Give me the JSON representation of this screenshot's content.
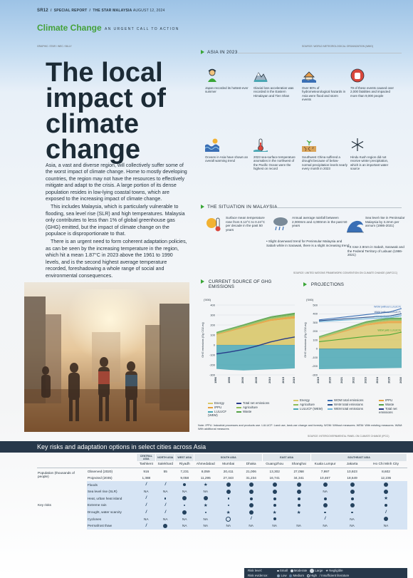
{
  "header": {
    "section": "SR12",
    "report": "SPECIAL REPORT",
    "paper": "THE STAR",
    "country": "MALAYSIA",
    "date": "AUGUST 12, 2024"
  },
  "banner": {
    "title": "Climate Change",
    "subtitle": "AN URGENT CALL TO ACTION"
  },
  "credit": "GRAPHIC: STAR / WEC / BILLY",
  "source_top": "SOURCE: WORLD METEOROLOGICAL ORGANIZATION (WMO)",
  "title": "The local impact of climate change",
  "body": [
    "Asia, a vast and diverse region, will collectively suffer some of the worst impact of climate change. Home to mostly developing countries, the region may not have the resources to effectively mitigate and adapt to the crisis. A large portion of its dense population resides in low-lying coastal towns, which are exposed to the increasing impact of climate change.",
    "This includes Malaysia, which is particularly vulnerable to flooding, sea level rise (SLR) and high temperatures. Malaysia only contributes to less than 1% of global greenhouse gas (GHG) emitted, but the impact of climate change on the populace is disproportionate to that.",
    "There is an urgent need to form coherent adaptation policies, as can be seen by the increasing temperature in the region, which hit a mean 1.87°C in 2023 above the 1961 to 1990 levels, and is the second highest average temperature recorded, foreshadowing a whole range of social and environmental consequences."
  ],
  "asia": {
    "heading": "ASIA IN 2023",
    "items": [
      {
        "icon": "hot-person-icon",
        "text": "Japan recorded its hottest-ever summer"
      },
      {
        "icon": "glacier-icon",
        "text": "Glacial loss acceleration was recorded in the Eastern Himalayan and Tien Shan"
      },
      {
        "icon": "flood-icon",
        "text": "Over 80% of hydrometeorological hazards in Asia were flood and storm events"
      },
      {
        "icon": "stop-hand-icon",
        "text": "79 of these events caused over 2,000 fatalities and impacted more than 9,000 people"
      },
      {
        "icon": "ocean-icon",
        "text": "Oceans in Asia have shown an overall warming trend"
      },
      {
        "icon": "thermometer-icon",
        "text": "2023 sea-surface temperature anomalies in the northwest of the Pacific Ocean were the highest on record"
      },
      {
        "icon": "drought-icon",
        "text": "Southwest China suffered a drought because of below-normal precipitation levels nearly every month in 2023"
      },
      {
        "icon": "snowflake-icon",
        "text": "Hindu Kush region did not receive winter precipitation, which is an important water source"
      }
    ]
  },
  "malaysia": {
    "heading": "THE SITUATION IN MALAYSIA",
    "temp": "Surface mean temperature rose from 0.13°C to 0.24°C per decade in the past 50 years",
    "rain_main": "Annual average rainfall between 2,000mm and 4,000mm in the past 50 years",
    "rain_b1": "• Slight downward trend for Peninsular Malaysia and Sabah while in Sarawak, there is a slight increasing trend",
    "sea_main": "Sea level rise in Peninsular Malaysia by 3.2mm per annum (1986-2021)",
    "sea_b1": "• It rose 2.9mm in Sabah, Sarawak and the Federal Territory of Labuan (1986-2021)",
    "source": "SOURCE: UNITED NATIONS FRAMEWORK CONVENTION ON CLIMATE CHANGE (UNFCCC)"
  },
  "chart_data": [
    {
      "type": "area",
      "title": "CURRENT SOURCE OF GHG EMISSIONS",
      "unit": "('000)",
      "ylabel": "GHG emissions (Gg CO2-eq)",
      "ylim": [
        -300,
        400
      ],
      "yticks": [
        400,
        300,
        200,
        100,
        0,
        -100,
        -200,
        -300
      ],
      "xticks": [
        "1990",
        "1995",
        "2000",
        "2005",
        "2010",
        "2015",
        "2019"
      ],
      "x": [
        1990,
        1995,
        2000,
        2005,
        2010,
        2015,
        2019
      ],
      "series": [
        {
          "name": "Energy",
          "color": "#d9c86a",
          "values": [
            100,
            135,
            170,
            205,
            240,
            255,
            265
          ]
        },
        {
          "name": "IPPU",
          "color": "#e6a13a",
          "values": [
            8,
            10,
            12,
            15,
            18,
            22,
            25
          ]
        },
        {
          "name": "Agriculture",
          "color": "#8fbd57",
          "values": [
            12,
            12,
            12,
            13,
            13,
            14,
            15
          ]
        },
        {
          "name": "Waste",
          "color": "#56a248",
          "values": [
            10,
            11,
            12,
            14,
            15,
            16,
            18
          ]
        },
        {
          "name": "LULUCF (WEM)",
          "color": "#4aa7b4",
          "values": [
            -240,
            -250,
            -255,
            -250,
            -245,
            -240,
            -235
          ]
        },
        {
          "name": "Total net emissions",
          "color": "#283c8a",
          "values": [
            -90,
            -70,
            -45,
            -10,
            30,
            60,
            80
          ]
        }
      ]
    },
    {
      "type": "line",
      "title": "PROJECTIONS",
      "unit": "('000)",
      "ylabel": "GHG emissions (Gg CO2-eq)",
      "ylim": [
        -300,
        500
      ],
      "yticks": [
        500,
        400,
        300,
        200,
        100,
        0,
        -100,
        -200,
        -300
      ],
      "xticks": [
        "2019",
        "2020",
        "2021",
        "2022",
        "2023",
        "2024",
        "2025",
        "2030"
      ],
      "x": [
        2019,
        2020,
        2021,
        2022,
        2023,
        2024,
        2025,
        2030
      ],
      "labels": [
        "WOM (without LULUCF)",
        "WAM (without LULUCF)",
        "WEM (without LULUCF)",
        "WEM (with LULUCF)"
      ],
      "series": [
        {
          "name": "WOM total emissions",
          "color": "#3a6fb5",
          "values": [
            330,
            345,
            360,
            375,
            390,
            405,
            420,
            460
          ]
        },
        {
          "name": "WAM total emissions",
          "color": "#2a4f8a",
          "values": [
            320,
            330,
            340,
            350,
            360,
            368,
            375,
            400
          ]
        },
        {
          "name": "WEM total emissions",
          "color": "#6cb4d8",
          "values": [
            310,
            318,
            326,
            334,
            342,
            350,
            356,
            380
          ]
        },
        {
          "name": "WEM (with LULUCF)",
          "color": "#4aa637",
          "values": [
            80,
            95,
            110,
            125,
            140,
            150,
            160,
            190
          ]
        }
      ]
    }
  ],
  "chart_legend": {
    "left": [
      "Energy",
      "IPPU",
      "LULUCF (WEM)",
      "Total net emissions",
      "Agriculture",
      "Waste"
    ],
    "right": [
      "Energy",
      "Agriculture",
      "LULUCF (WEM)",
      "WOM total emissions",
      "WAM total emissions",
      "WEM total emissions",
      "IPPU",
      "Waste",
      "Total net emissions"
    ]
  },
  "chart_note": "Note: IPPU: Industrial processes and products use. LULUCF: Land use, land-use change and forestry. WOM: Without measures. WEM: With existing measures. WAM: With additional measures",
  "chart_source": "SOURCE: INTERGOVERNMENTAL PANEL ON CLIMATE CHANGE (IPCC)",
  "risk": {
    "title": "Key risks and adaptation options in select cities across Asia",
    "groups": [
      "CENTRAL ASIA",
      "NORTH ASIA",
      "WEST ASIA",
      "SOUTH ASIA",
      "EAST ASIA",
      "SOUTHEAST ASIA"
    ],
    "cities": [
      "Tashkent",
      "Salekhard",
      "Riyadh",
      "Ahmedabad",
      "Mumbai",
      "Dhaka",
      "Guangzhou",
      "Shanghai",
      "Kuala Lumpur",
      "Jakarta",
      "Ho Chi Minh City"
    ],
    "pop_label": "Population (thousands of people)",
    "observed_label": "Observed (2020)",
    "projected_label": "Projected (2035)",
    "observed": [
      "916",
      "55",
      "7,231",
      "8,059",
      "20,411",
      "21,006",
      "13,302",
      "27,058",
      "7,997",
      "10,923",
      "8,602"
    ],
    "projected": [
      "1,388",
      "",
      "9,058",
      "11,295",
      "27,343",
      "31,234",
      "16,741",
      "34,341",
      "10,467",
      "18,649",
      "12,236"
    ],
    "key_risks_label": "Key risks",
    "hazards": [
      "Floods",
      "Sea level rise (SLR)",
      "Heat, urban heat island",
      "Extreme rain",
      "Drought, water scarcity",
      "Cyclones",
      "Permafrost thaw"
    ],
    "cells": [
      [
        "/",
        "/",
        "M",
        "*",
        "L",
        "L",
        "L",
        "L",
        "L",
        "L",
        "L"
      ],
      [
        "NA",
        "NA",
        "NA",
        "NA",
        "L",
        "L",
        "L",
        "L",
        "NA",
        "L",
        "L"
      ],
      [
        "/",
        "S",
        "L",
        "L",
        "S",
        "M",
        "M",
        "M",
        "M",
        "M",
        "*"
      ],
      [
        "/",
        "/",
        "S",
        "*",
        "S",
        "L",
        "M",
        "M",
        "L",
        "L",
        "M"
      ],
      [
        "/",
        "/",
        "L",
        "S",
        "*",
        "L",
        "*",
        "*",
        "S",
        "S",
        "/"
      ],
      [
        "NA",
        "NA",
        "NA",
        "NA",
        "O",
        "/",
        "M",
        "",
        "/",
        "NA",
        "L"
      ],
      [
        "/",
        "L",
        "NA",
        "NA",
        "NA",
        "NA",
        "NA",
        "NA",
        "NA",
        "NA",
        "NA"
      ]
    ],
    "legend_level_label": "Risk level:",
    "legend_evidence_label": "Risk evidence:",
    "legend_small": "Small",
    "legend_moderate": "Moderate",
    "legend_large": "Large",
    "legend_negligible": "Negligible",
    "legend_low": "Low",
    "legend_medium": "Medium",
    "legend_high": "High",
    "legend_insufficient": "Insufficient literature"
  }
}
